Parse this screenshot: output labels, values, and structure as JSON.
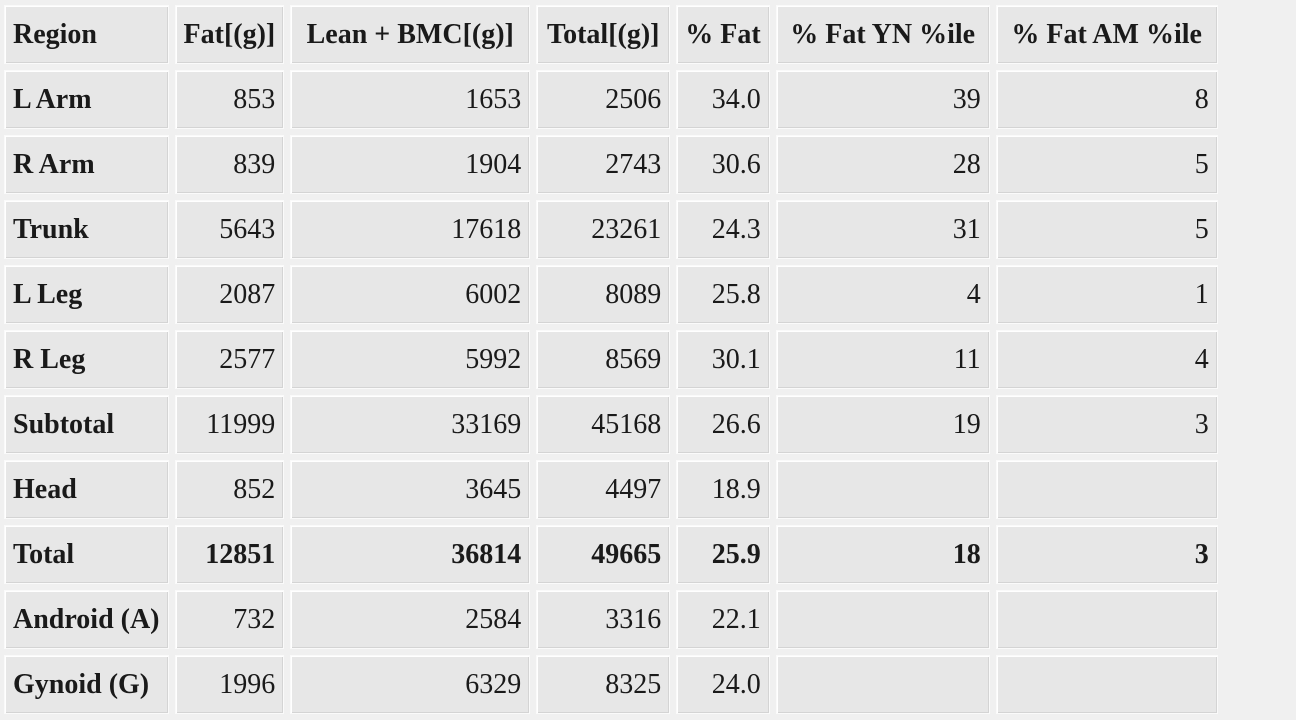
{
  "table": {
    "headers": [
      "Region",
      "Fat[(g)]",
      "Lean + BMC[(g)]",
      "Total[(g)]",
      "% Fat",
      "% Fat YN %ile",
      "% Fat AM %ile"
    ],
    "rows": [
      {
        "region": "L Arm",
        "fat": "853",
        "lean_bmc": "1653",
        "total": "2506",
        "pct_fat": "34.0",
        "yn_pctile": "39",
        "am_pctile": "8"
      },
      {
        "region": "R Arm",
        "fat": "839",
        "lean_bmc": "1904",
        "total": "2743",
        "pct_fat": "30.6",
        "yn_pctile": "28",
        "am_pctile": "5"
      },
      {
        "region": "Trunk",
        "fat": "5643",
        "lean_bmc": "17618",
        "total": "23261",
        "pct_fat": "24.3",
        "yn_pctile": "31",
        "am_pctile": "5"
      },
      {
        "region": "L Leg",
        "fat": "2087",
        "lean_bmc": "6002",
        "total": "8089",
        "pct_fat": "25.8",
        "yn_pctile": "4",
        "am_pctile": "1"
      },
      {
        "region": "R Leg",
        "fat": "2577",
        "lean_bmc": "5992",
        "total": "8569",
        "pct_fat": "30.1",
        "yn_pctile": "11",
        "am_pctile": "4"
      },
      {
        "region": "Subtotal",
        "fat": "11999",
        "lean_bmc": "33169",
        "total": "45168",
        "pct_fat": "26.6",
        "yn_pctile": "19",
        "am_pctile": "3"
      },
      {
        "region": "Head",
        "fat": "852",
        "lean_bmc": "3645",
        "total": "4497",
        "pct_fat": "18.9",
        "yn_pctile": "",
        "am_pctile": ""
      },
      {
        "region": "Total",
        "fat": "12851",
        "lean_bmc": "36814",
        "total": "49665",
        "pct_fat": "25.9",
        "yn_pctile": "18",
        "am_pctile": "3"
      },
      {
        "region": "Android (A)",
        "fat": "732",
        "lean_bmc": "2584",
        "total": "3316",
        "pct_fat": "22.1",
        "yn_pctile": "",
        "am_pctile": ""
      },
      {
        "region": "Gynoid (G)",
        "fat": "1996",
        "lean_bmc": "6329",
        "total": "8325",
        "pct_fat": "24.0",
        "yn_pctile": "",
        "am_pctile": ""
      }
    ]
  }
}
